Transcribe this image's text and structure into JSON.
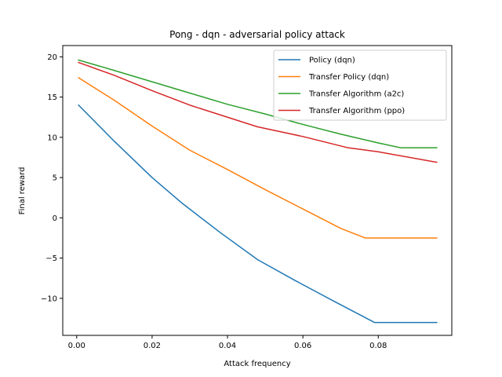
{
  "chart_data": {
    "type": "line",
    "title": "Pong - dqn - adversarial policy attack",
    "xlabel": "Attack frequency",
    "ylabel": "Final reward",
    "xlim": [
      -0.0037,
      0.0995
    ],
    "ylim": [
      -14.6,
      21.4
    ],
    "xticks": [
      0.0,
      0.02,
      0.04,
      0.06,
      0.08
    ],
    "xtick_labels": [
      "0.00",
      "0.02",
      "0.04",
      "0.06",
      "0.08"
    ],
    "yticks": [
      -10,
      -5,
      0,
      5,
      10,
      15,
      20
    ],
    "ytick_labels": [
      "−10",
      "−5",
      "0",
      "5",
      "10",
      "15",
      "20"
    ],
    "grid": false,
    "legend_position": "upper right",
    "series": [
      {
        "name": "Policy (dqn)",
        "color": "#1f77b4",
        "x": [
          0.0005,
          0.01,
          0.02,
          0.028,
          0.038,
          0.048,
          0.058,
          0.068,
          0.079,
          0.086,
          0.0955
        ],
        "y": [
          14.0,
          9.5,
          5.0,
          1.8,
          -1.8,
          -5.2,
          -7.8,
          -10.3,
          -13.0,
          -13.0,
          -13.0
        ]
      },
      {
        "name": "Transfer Policy (dqn)",
        "color": "#ff7f0e",
        "x": [
          0.0005,
          0.01,
          0.02,
          0.03,
          0.04,
          0.05,
          0.06,
          0.07,
          0.0765,
          0.086,
          0.0955
        ],
        "y": [
          17.4,
          14.6,
          11.4,
          8.4,
          6.0,
          3.5,
          1.1,
          -1.3,
          -2.5,
          -2.5,
          -2.5
        ]
      },
      {
        "name": "Transfer Algorithm (a2c)",
        "color": "#2ca02c",
        "x": [
          0.0005,
          0.01,
          0.02,
          0.03,
          0.04,
          0.05,
          0.06,
          0.07,
          0.08,
          0.086,
          0.0955
        ],
        "y": [
          19.6,
          18.3,
          16.9,
          15.5,
          14.1,
          12.9,
          11.6,
          10.4,
          9.3,
          8.7,
          8.7
        ]
      },
      {
        "name": "Transfer Algorithm (ppo)",
        "color": "#d62728",
        "x": [
          0.0005,
          0.01,
          0.02,
          0.03,
          0.04,
          0.048,
          0.06,
          0.072,
          0.08,
          0.0955
        ],
        "y": [
          19.3,
          17.7,
          15.8,
          14.0,
          12.5,
          11.3,
          10.1,
          8.7,
          8.2,
          6.9
        ]
      }
    ]
  }
}
